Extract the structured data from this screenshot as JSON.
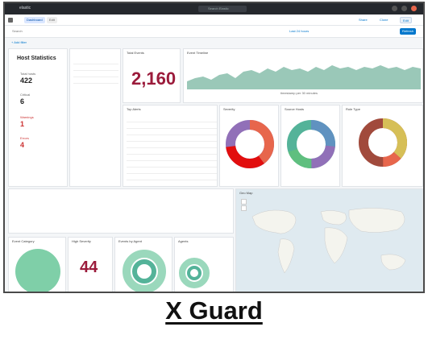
{
  "app": {
    "brand": "elastic",
    "search_placeholder": "Search Elastic"
  },
  "toolbar": {
    "tab1": "Dashboard",
    "tab2": "Edit",
    "btn_share": "Share",
    "btn_clone": "Clone",
    "btn_edit": "Edit"
  },
  "filter": {
    "label": "Search",
    "date": "Last 24 hours",
    "refresh": "Refresh"
  },
  "subbar": {
    "add_filter": "+ Add filter"
  },
  "panels": {
    "host_stats": {
      "title": "Host Statistics",
      "lines": [
        "Total hosts",
        "422",
        "Critical",
        "6",
        "Warnings",
        "1",
        "Errors",
        "4"
      ]
    },
    "total": {
      "title": "Total Events",
      "value": "2,160"
    },
    "timeline": {
      "title": "Event Timeline",
      "xlabel": "timestamp per 30 minutes"
    },
    "alerts": {
      "title": "Top Alerts"
    },
    "severity": {
      "title": "Severity"
    },
    "sources": {
      "title": "Source Hosts"
    },
    "rules": {
      "title": "Rule Type"
    },
    "map": {
      "title": "Geo Map"
    },
    "bottom1": {
      "title": "Event Category"
    },
    "bottom2": {
      "title": "High Severity",
      "value": "44"
    },
    "bottom3": {
      "title": "Events by Agent"
    },
    "bottom4": {
      "title": "Agents"
    }
  },
  "caption": "X Guard",
  "colors": {
    "accent": "#9b1b3b",
    "blue": "#0077cc",
    "teal": "#54b399",
    "orange": "#e7664c",
    "red": "#e20e0e",
    "purple": "#9170b8",
    "green": "#5fbf7f",
    "brown": "#a14a3c",
    "gold": "#d6bf57"
  }
}
